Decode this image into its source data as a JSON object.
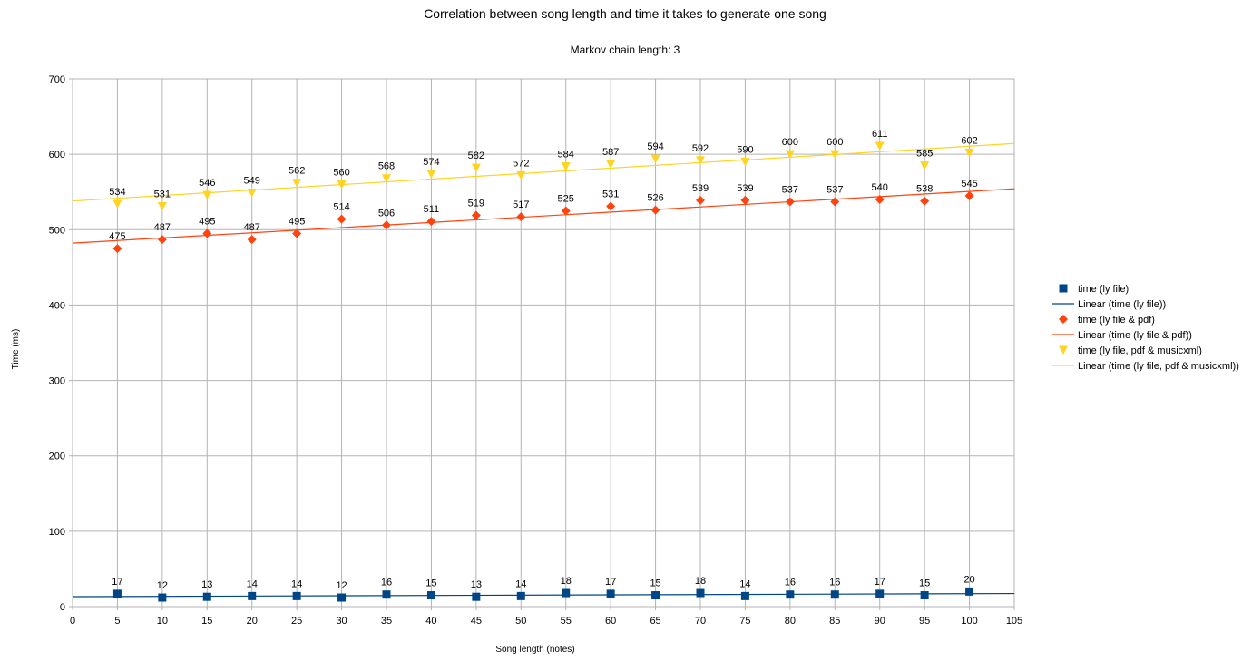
{
  "chart_data": {
    "type": "scatter",
    "title": "Correlation between song length and time it takes to generate one song",
    "subtitle": "Markov chain length: 3",
    "xlabel": "Song length (notes)",
    "ylabel": "Time (ms)",
    "xlim": [
      0,
      105
    ],
    "ylim": [
      0,
      700
    ],
    "xticks": [
      0,
      5,
      10,
      15,
      20,
      25,
      30,
      35,
      40,
      45,
      50,
      55,
      60,
      65,
      70,
      75,
      80,
      85,
      90,
      95,
      100,
      105
    ],
    "yticks": [
      0,
      100,
      200,
      300,
      400,
      500,
      600,
      700
    ],
    "grid": true,
    "legend_position": "right",
    "x": [
      5,
      10,
      15,
      20,
      25,
      30,
      35,
      40,
      45,
      50,
      55,
      60,
      65,
      70,
      75,
      80,
      85,
      90,
      95,
      100
    ],
    "series": [
      {
        "name": "time (ly file)",
        "trendline_name": "Linear (time (ly file))",
        "marker": "square",
        "color": "#004586",
        "values": [
          17,
          12,
          13,
          14,
          14,
          12,
          16,
          15,
          13,
          14,
          18,
          17,
          15,
          18,
          14,
          16,
          16,
          17,
          15,
          20
        ]
      },
      {
        "name": "time (ly file & pdf)",
        "trendline_name": "Linear (time (ly file & pdf))",
        "marker": "diamond",
        "color": "#ff420e",
        "values": [
          475,
          487,
          495,
          487,
          495,
          514,
          506,
          511,
          519,
          517,
          525,
          531,
          526,
          539,
          539,
          537,
          537,
          540,
          538,
          545
        ]
      },
      {
        "name": "time (ly file, pdf & musicxml)",
        "trendline_name": "Linear (time (ly file, pdf & musicxml))",
        "marker": "triangle-down",
        "color": "#ffd320",
        "values": [
          534,
          531,
          546,
          549,
          562,
          560,
          568,
          574,
          582,
          572,
          584,
          587,
          594,
          592,
          590,
          600,
          600,
          611,
          585,
          602
        ]
      }
    ]
  }
}
